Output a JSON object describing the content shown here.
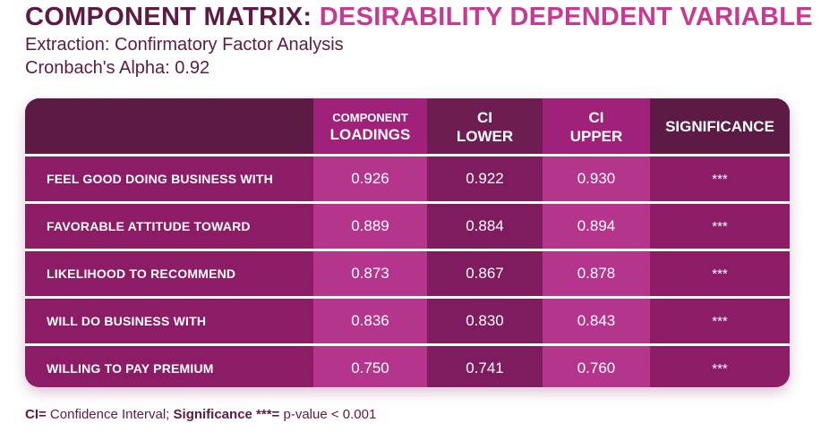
{
  "title": {
    "part1": "COMPONENT MATRIX:",
    "part2": "DESIRABILITY DEPENDENT VARIABLE"
  },
  "subtitle": {
    "line1": "Extraction: Confirmatory Factor Analysis",
    "line2": "Cronbach's Alpha: 0.92"
  },
  "headers": {
    "loadings": {
      "line1": "COMPONENT",
      "line2": "LOADINGS"
    },
    "ci_lower": {
      "line1": "CI",
      "line2": "LOWER"
    },
    "ci_upper": {
      "line1": "CI",
      "line2": "UPPER"
    },
    "significance": "SIGNIFICANCE"
  },
  "rows": [
    {
      "label": "FEEL GOOD DOING BUSINESS WITH",
      "loading": "0.926",
      "ci_lower": "0.922",
      "ci_upper": "0.930",
      "significance": "***"
    },
    {
      "label": "FAVORABLE ATTITUDE TOWARD",
      "loading": "0.889",
      "ci_lower": "0.884",
      "ci_upper": "0.894",
      "significance": "***"
    },
    {
      "label": "LIKELIHOOD TO RECOMMEND",
      "loading": "0.873",
      "ci_lower": "0.867",
      "ci_upper": "0.878",
      "significance": "***"
    },
    {
      "label": "WILL DO BUSINESS WITH",
      "loading": "0.836",
      "ci_lower": "0.830",
      "ci_upper": "0.843",
      "significance": "***"
    },
    {
      "label": "WILLING TO PAY PREMIUM",
      "loading": "0.750",
      "ci_lower": "0.741",
      "ci_upper": "0.760",
      "significance": "***"
    }
  ],
  "footnote": {
    "ci_key": "CI=",
    "ci_text": " Confidence Interval; ",
    "sig_key": "Significance ***=",
    "sig_text": " p-value < 0.001"
  },
  "colors": {
    "title_dark": "#5c1a44",
    "title_accent": "#c63a96",
    "header_bg": "#5c1a44",
    "body_bg": "#8d1c67",
    "highlight_col": "#b5348c"
  }
}
